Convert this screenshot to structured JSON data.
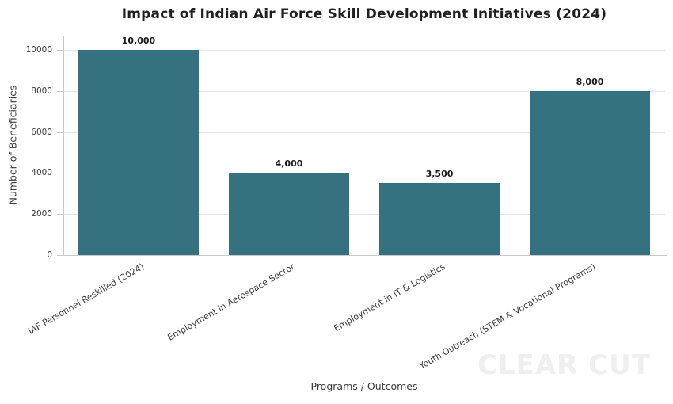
{
  "watermark": "CLEAR CUT",
  "chart_data": {
    "type": "bar",
    "title": "Impact of Indian Air Force Skill Development Initiatives (2024)",
    "xlabel": "Programs / Outcomes",
    "ylabel": "Number of Beneficiaries",
    "categories": [
      "IAF Personnel Reskilled (2024)",
      "Employment in Aerospace Sector",
      "Employment in IT & Logistics",
      "Youth Outreach (STEM & Vocational Programs)"
    ],
    "values": [
      10000,
      4000,
      3500,
      8000
    ],
    "bar_labels": [
      "10,000",
      "4,000",
      "3,500",
      "8,000"
    ],
    "yticks": [
      0,
      2000,
      4000,
      6000,
      8000,
      10000
    ],
    "ylim": [
      0,
      10700
    ],
    "grid": true,
    "legend": false,
    "x_tick_rotation_deg": 30,
    "bar_width_fraction": 0.8,
    "colors": {
      "bar": "#36717f",
      "gridline": "#e3e3e3",
      "spine": "#c9c9c9",
      "title_text": "#1f1f1f",
      "tick_text": "#3d3d3d",
      "value_label_text": "#1a1a1a",
      "watermark_text": "#efefef"
    }
  }
}
